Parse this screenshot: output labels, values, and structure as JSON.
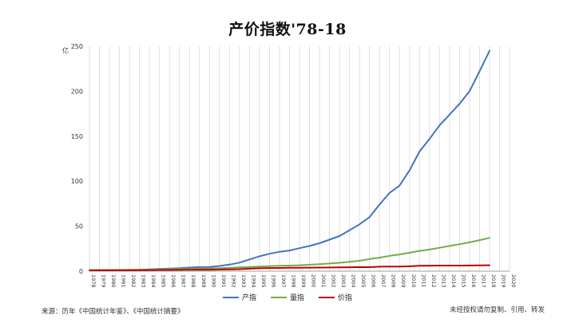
{
  "title": "产价指数'78-18",
  "source_note": "来源：历年《中国统计年鉴》、《中国统计摘要》",
  "copyright_note": "未经授权请勿复制、引用、转发",
  "colors": {
    "output": "#4472C4",
    "volume": "#70AD47",
    "price": "#C00000",
    "grid": "#d9d9d9",
    "axis": "#9e9e9e"
  },
  "chart_data": {
    "type": "line",
    "title": "产价指数'78-18",
    "ylabel": "亿",
    "xlabel": "",
    "ylim": [
      0,
      250
    ],
    "yticks": [
      0,
      50,
      100,
      150,
      200,
      250
    ],
    "x": [
      1978,
      1979,
      1980,
      1981,
      1982,
      1983,
      1984,
      1985,
      1986,
      1987,
      1988,
      1989,
      1990,
      1991,
      1992,
      1993,
      1994,
      1995,
      1996,
      1997,
      1998,
      1999,
      2000,
      2001,
      2002,
      2003,
      2004,
      2005,
      2006,
      2007,
      2008,
      2009,
      2010,
      2011,
      2012,
      2013,
      2014,
      2015,
      2016,
      2017,
      2018
    ],
    "xticks": [
      1978,
      1979,
      1980,
      1981,
      1982,
      1983,
      1984,
      1985,
      1986,
      1987,
      1988,
      1989,
      1990,
      1991,
      1992,
      1993,
      1994,
      1995,
      1996,
      1997,
      1998,
      1999,
      2000,
      2001,
      2002,
      2003,
      2004,
      2005,
      2006,
      2007,
      2008,
      2009,
      2010,
      2011,
      2012,
      2013,
      2014,
      2015,
      2016,
      2017,
      2018,
      2019,
      2020
    ],
    "grid": "vertical",
    "legend_position": "bottom",
    "series": [
      {
        "name": "产指",
        "color": "#4472C4",
        "values": [
          1,
          1.1,
          1.2,
          1.3,
          1.4,
          1.6,
          2.0,
          2.5,
          2.8,
          3.3,
          4.0,
          4.5,
          4.7,
          5.8,
          7.3,
          9.5,
          13.0,
          16.5,
          19.3,
          21.5,
          23.0,
          25.5,
          28.0,
          31.0,
          35.0,
          39.0,
          45.5,
          52.0,
          60.0,
          74.0,
          87.0,
          95.0,
          112.0,
          133.0,
          147.0,
          162.0,
          174.0,
          186.0,
          200.0,
          222.0,
          245.0
        ]
      },
      {
        "name": "量指",
        "color": "#70AD47",
        "values": [
          1,
          1.1,
          1.2,
          1.3,
          1.4,
          1.5,
          1.7,
          1.9,
          2.1,
          2.3,
          2.6,
          2.8,
          3.0,
          3.3,
          3.7,
          4.2,
          4.7,
          5.1,
          5.6,
          6.0,
          6.2,
          6.6,
          7.2,
          7.8,
          8.5,
          9.3,
          10.5,
          11.5,
          13.5,
          15.0,
          17.0,
          18.5,
          20.5,
          22.5,
          24.0,
          26.0,
          28.0,
          30.0,
          32.0,
          34.5,
          37.0
        ]
      },
      {
        "name": "价指",
        "color": "#C00000",
        "values": [
          1,
          1.0,
          1.0,
          1.0,
          1.0,
          1.05,
          1.15,
          1.3,
          1.35,
          1.45,
          1.55,
          1.6,
          1.6,
          1.75,
          1.95,
          2.2,
          2.75,
          3.2,
          3.45,
          3.55,
          3.7,
          3.8,
          3.9,
          4.0,
          4.1,
          4.2,
          4.35,
          4.5,
          4.45,
          4.95,
          5.1,
          5.1,
          5.45,
          5.9,
          6.1,
          6.2,
          6.2,
          6.2,
          6.25,
          6.4,
          6.6
        ]
      }
    ]
  }
}
